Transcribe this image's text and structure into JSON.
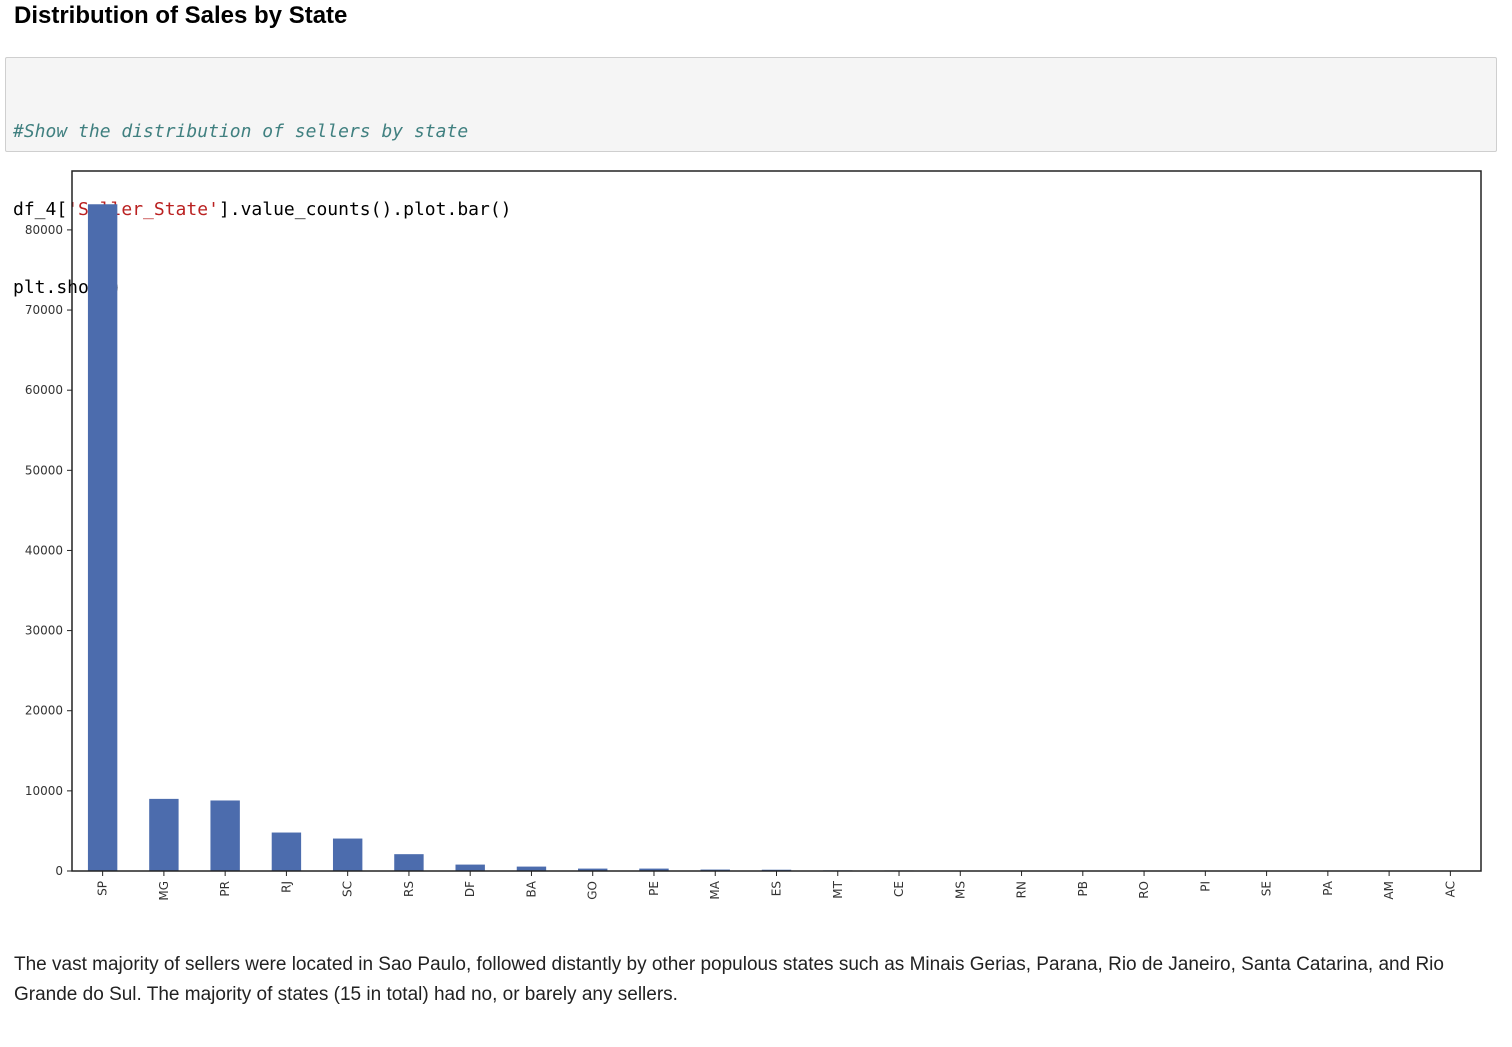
{
  "heading": "Distribution of Sales by State",
  "code": {
    "line1_comment": "#Show the distribution of sellers by state",
    "line2_prefix": "df_4[",
    "line2_string": "'Seller_State'",
    "line2_suffix": "].value_counts().plot.bar()",
    "line3": "plt.show()"
  },
  "chart_data": {
    "type": "bar",
    "categories": [
      "SP",
      "MG",
      "PR",
      "RJ",
      "SC",
      "RS",
      "DF",
      "BA",
      "GO",
      "PE",
      "MA",
      "ES",
      "MT",
      "CE",
      "MS",
      "RN",
      "PB",
      "RO",
      "PI",
      "SE",
      "PA",
      "AM",
      "AC"
    ],
    "values": [
      83200,
      9000,
      8800,
      4800,
      4050,
      2100,
      800,
      550,
      300,
      300,
      180,
      160,
      80,
      70,
      50,
      40,
      30,
      20,
      15,
      10,
      8,
      5,
      3
    ],
    "title": "",
    "xlabel": "",
    "ylabel": "",
    "ylim": [
      0,
      87350
    ],
    "yticks": [
      0,
      10000,
      20000,
      30000,
      40000,
      50000,
      60000,
      70000,
      80000
    ],
    "bar_color": "#4c6cad",
    "grid": false,
    "legend": "none"
  },
  "description": "The vast majority of sellers were located in Sao Paulo, followed distantly by other populous states such as Minais Gerias, Parana, Rio de Janeiro, Santa Catarina, and Rio Grande do Sul. The majority of states (15 in total) had no, or barely any sellers."
}
